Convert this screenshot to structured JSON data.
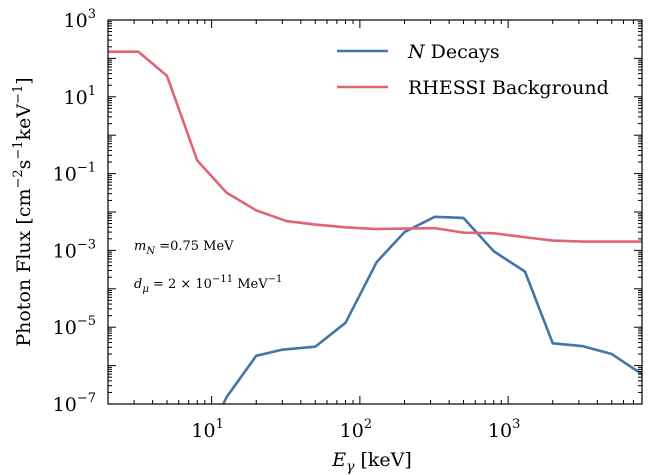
{
  "chart_data": {
    "type": "line",
    "xlabel": {
      "base": "E",
      "sub": "γ",
      "unit": " [keV]"
    },
    "ylabel": {
      "main": "Photon Flux [cm",
      "sup1": "−2",
      "mid": "s",
      "sup2": "−1",
      "mid2": "keV",
      "sup3": "−1",
      "end": "]"
    },
    "xscale": "log",
    "yscale": "log",
    "xlim": [
      2,
      8000
    ],
    "ylim": [
      1e-07,
      1000
    ],
    "x_ticks": [
      {
        "value": 10,
        "base": "10",
        "exp": "1"
      },
      {
        "value": 100,
        "base": "10",
        "exp": "2"
      },
      {
        "value": 1000,
        "base": "10",
        "exp": "3"
      }
    ],
    "y_ticks": [
      {
        "value": 1e-07,
        "base": "10",
        "exp": "−7"
      },
      {
        "value": 1e-05,
        "base": "10",
        "exp": "−5"
      },
      {
        "value": 0.001,
        "base": "10",
        "exp": "−3"
      },
      {
        "value": 0.1,
        "base": "10",
        "exp": "−1"
      },
      {
        "value": 10,
        "base": "10",
        "exp": "1"
      },
      {
        "value": 1000,
        "base": "10",
        "exp": "3"
      }
    ],
    "legend_position": "top-right",
    "series": [
      {
        "name": "N Decays",
        "name_italic": "N",
        "name_rest": " Decays",
        "color": "#4575a8",
        "x": [
          12,
          12.6,
          20,
          30,
          50,
          80,
          130,
          200,
          320,
          500,
          800,
          1300,
          2000,
          3200,
          5000,
          8000
        ],
        "y": [
          1e-07,
          1.5e-07,
          1.8e-06,
          2.6e-06,
          3.1e-06,
          1.3e-05,
          0.0005,
          0.003,
          0.0075,
          0.007,
          0.00095,
          0.00028,
          3.8e-06,
          3.2e-06,
          2e-06,
          6e-07
        ]
      },
      {
        "name": "RHESSI Background",
        "color": "#e06476",
        "x": [
          2,
          3.2,
          5,
          8,
          12.6,
          20,
          32,
          50,
          80,
          130,
          200,
          320,
          500,
          800,
          1300,
          2000,
          3200,
          5000,
          8000
        ],
        "y": [
          150,
          150,
          35,
          0.22,
          0.032,
          0.011,
          0.0058,
          0.0047,
          0.004,
          0.0036,
          0.0037,
          0.0038,
          0.0029,
          0.0028,
          0.0022,
          0.0018,
          0.0017,
          0.0017,
          0.0017
        ]
      }
    ],
    "annotations": {
      "mass": {
        "sym": "m",
        "sub": "N",
        "text": " =0.75 MeV"
      },
      "coupling": {
        "sym": "d",
        "sub": "μ",
        "text": " = 2 × 10",
        "exp": "−11",
        "unit": " MeV",
        "unit_exp": "−1"
      }
    }
  }
}
